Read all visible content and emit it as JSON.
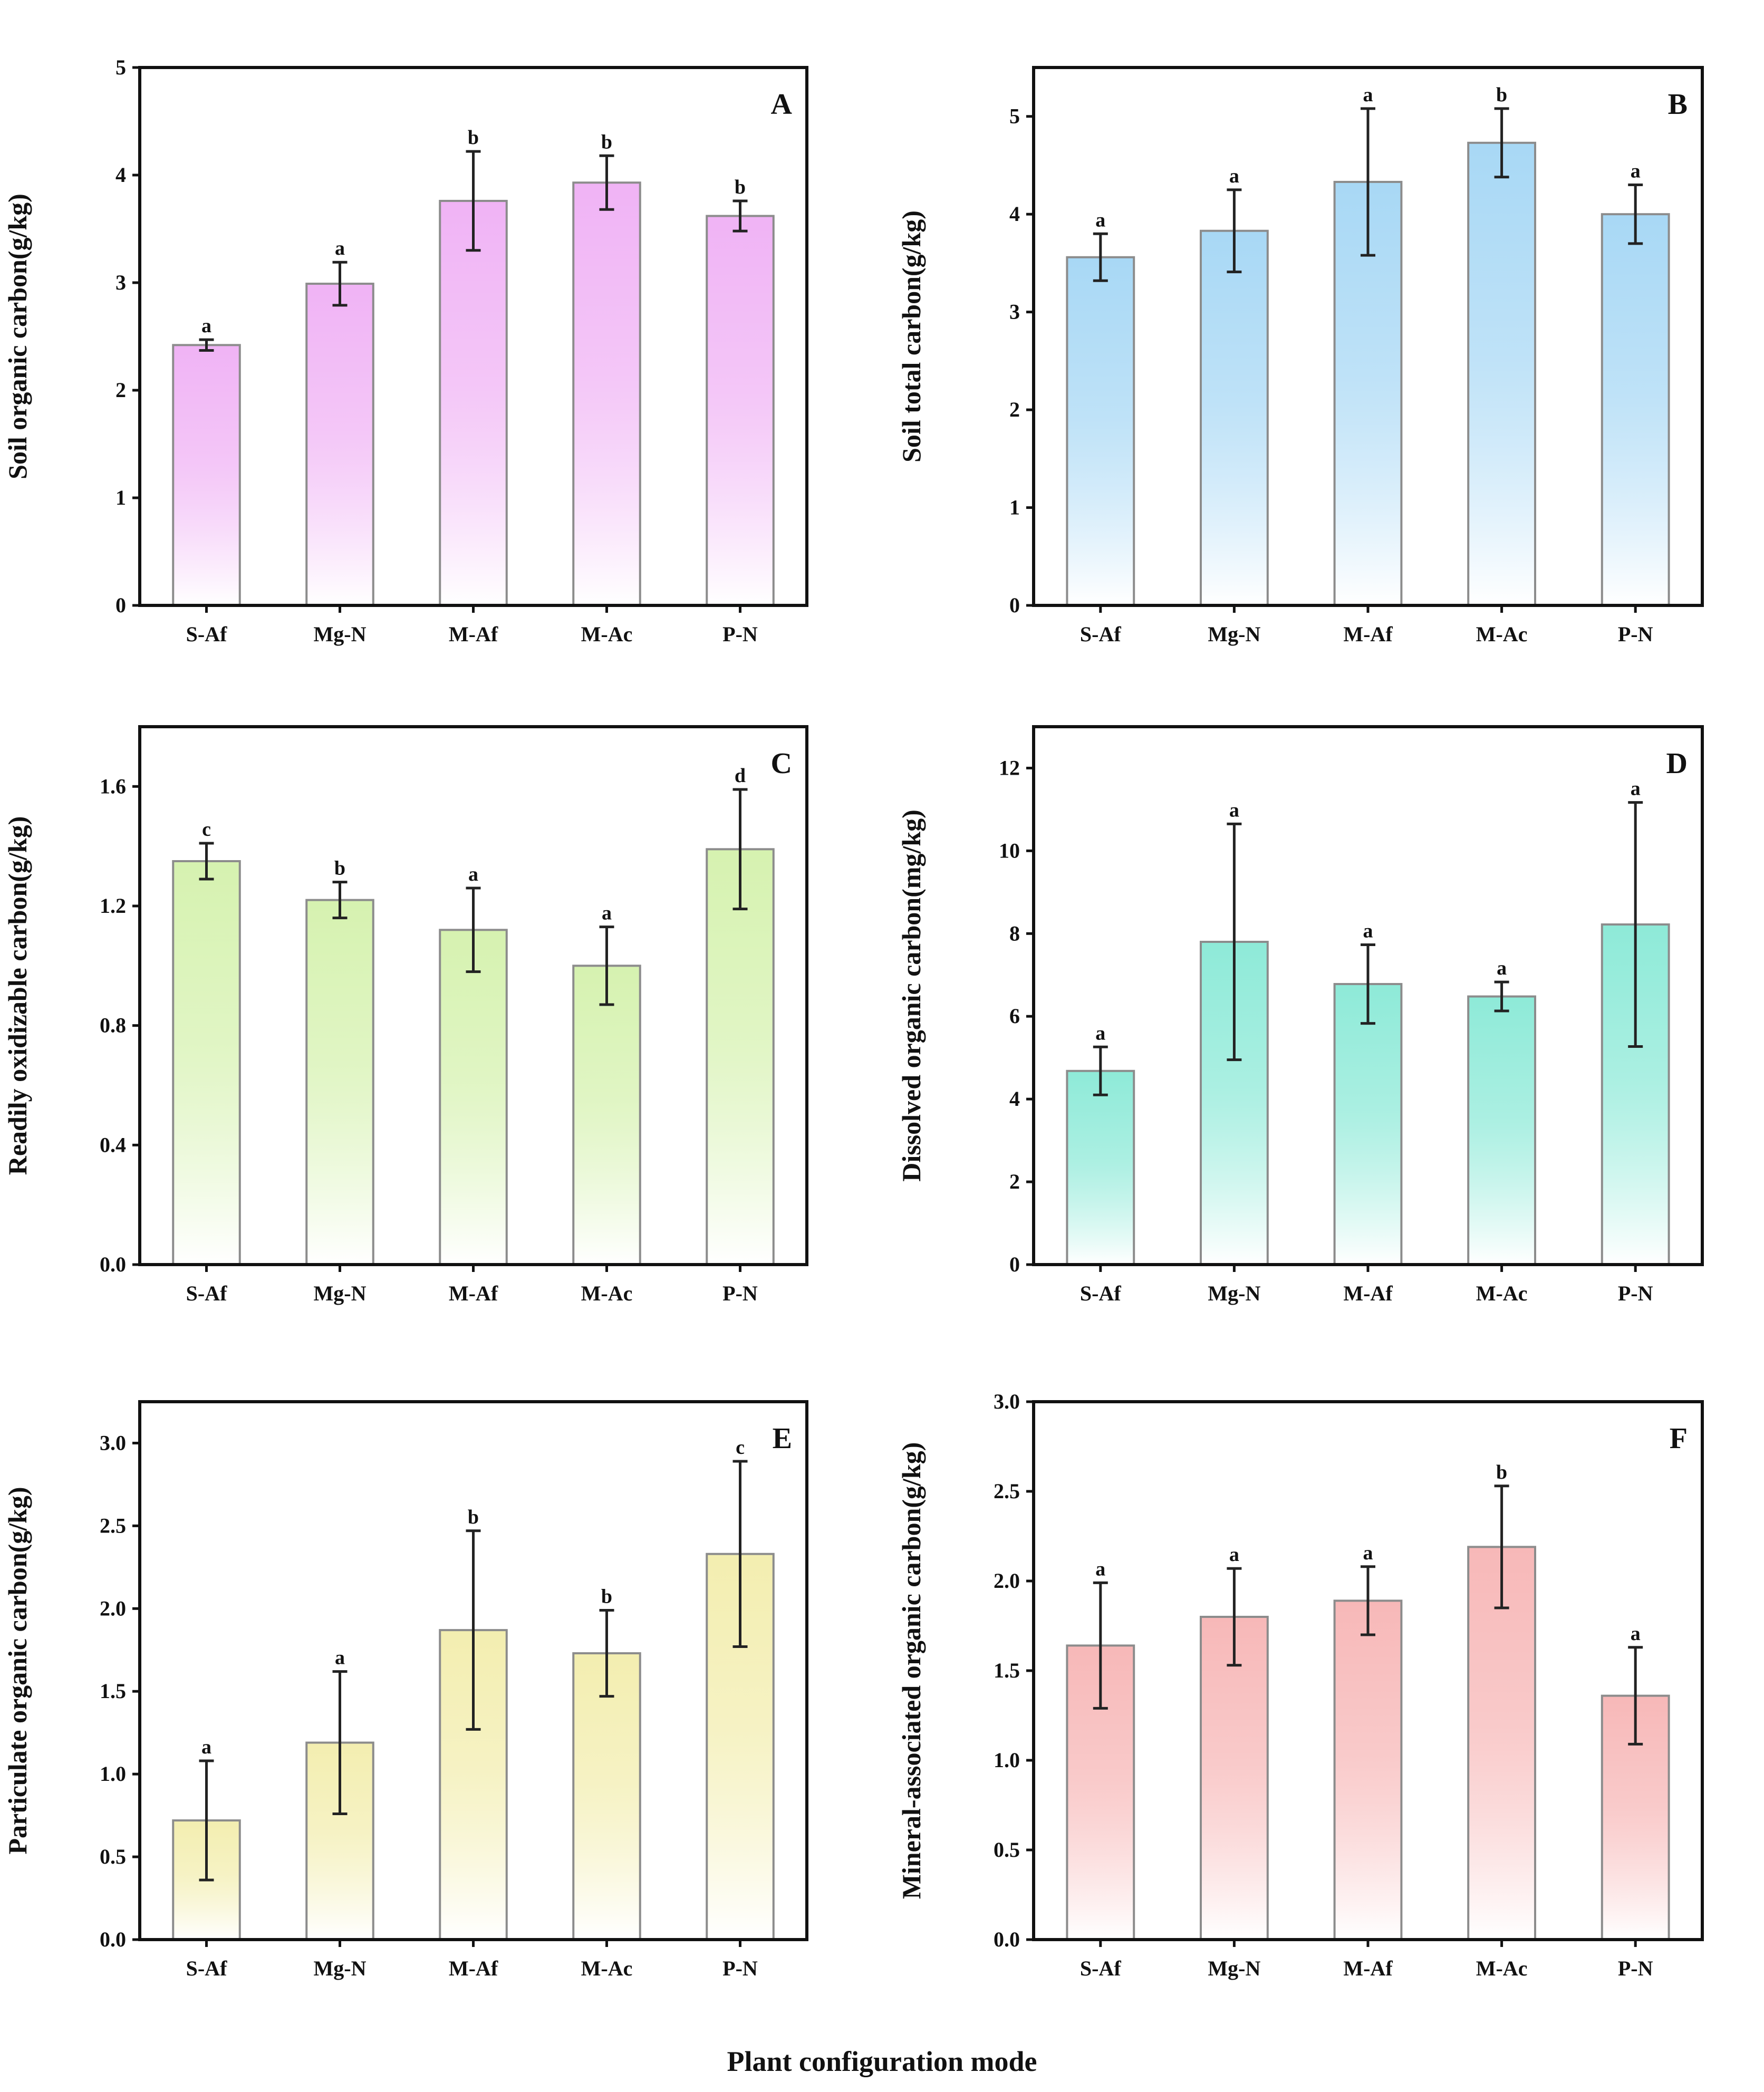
{
  "figure": {
    "common_xlabel": "Plant configuration mode"
  },
  "chart_data": [
    {
      "panel": "A",
      "type": "bar",
      "ylabel": "Soil organic carbon(g/kg)",
      "categories": [
        "S-Af",
        "Mg-N",
        "M-Af",
        "M-Ac",
        "P-N"
      ],
      "values": [
        2.42,
        2.99,
        3.76,
        3.93,
        3.62
      ],
      "errors": [
        0.05,
        0.2,
        0.46,
        0.25,
        0.14
      ],
      "letters": [
        "a",
        "a",
        "b",
        "b",
        "b"
      ],
      "ylim": [
        0,
        5
      ],
      "yticks": [
        "0",
        "1",
        "2",
        "3",
        "4",
        "5"
      ],
      "ytick_values": [
        0,
        1,
        2,
        3,
        4,
        5
      ],
      "color": "#f0b3f5"
    },
    {
      "panel": "B",
      "type": "bar",
      "ylabel": "Soil total carbon(g/kg)",
      "categories": [
        "S-Af",
        "Mg-N",
        "M-Af",
        "M-Ac",
        "P-N"
      ],
      "values": [
        3.56,
        3.83,
        4.33,
        4.73,
        4.0
      ],
      "errors": [
        0.24,
        0.42,
        0.75,
        0.35,
        0.3
      ],
      "letters": [
        "a",
        "a",
        "a",
        "b",
        "a"
      ],
      "ylim": [
        0,
        5.5
      ],
      "yticks": [
        "0",
        "1",
        "2",
        "3",
        "4",
        "5"
      ],
      "ytick_values": [
        0,
        1,
        2,
        3,
        4,
        5
      ],
      "color": "#a8d8f5"
    },
    {
      "panel": "C",
      "type": "bar",
      "ylabel": "Readily oxidizable carbon(g/kg)",
      "categories": [
        "S-Af",
        "Mg-N",
        "M-Af",
        "M-Ac",
        "P-N"
      ],
      "values": [
        1.35,
        1.22,
        1.12,
        1.0,
        1.39
      ],
      "errors": [
        0.06,
        0.06,
        0.14,
        0.13,
        0.2
      ],
      "letters": [
        "c",
        "b",
        "a",
        "a",
        "d"
      ],
      "ylim": [
        0,
        1.8
      ],
      "yticks": [
        "0.0",
        "0.4",
        "0.8",
        "1.2",
        "1.6"
      ],
      "ytick_values": [
        0,
        0.4,
        0.8,
        1.2,
        1.6
      ],
      "color": "#d6f2b0"
    },
    {
      "panel": "D",
      "type": "bar",
      "ylabel": "Dissolved organic carbon(mg/kg)",
      "categories": [
        "S-Af",
        "Mg-N",
        "M-Af",
        "M-Ac",
        "P-N"
      ],
      "values": [
        4.68,
        7.8,
        6.78,
        6.48,
        8.22
      ],
      "errors": [
        0.58,
        2.85,
        0.95,
        0.35,
        2.95
      ],
      "letters": [
        "a",
        "a",
        "a",
        "a",
        "a"
      ],
      "ylim": [
        0,
        13
      ],
      "yticks": [
        "0",
        "2",
        "4",
        "6",
        "8",
        "10",
        "12"
      ],
      "ytick_values": [
        0,
        2,
        4,
        6,
        8,
        10,
        12
      ],
      "color": "#8eead8"
    },
    {
      "panel": "E",
      "type": "bar",
      "ylabel": "Particulate organic carbon(g/kg)",
      "categories": [
        "S-Af",
        "Mg-N",
        "M-Af",
        "M-Ac",
        "P-N"
      ],
      "values": [
        0.72,
        1.19,
        1.87,
        1.73,
        2.33
      ],
      "errors": [
        0.36,
        0.43,
        0.6,
        0.26,
        0.56
      ],
      "letters": [
        "a",
        "a",
        "b",
        "b",
        "c"
      ],
      "ylim": [
        0,
        3.25
      ],
      "yticks": [
        "0.0",
        "0.5",
        "1.0",
        "1.5",
        "2.0",
        "2.5",
        "3.0"
      ],
      "ytick_values": [
        0,
        0.5,
        1.0,
        1.5,
        2.0,
        2.5,
        3.0
      ],
      "color": "#f3eeb0"
    },
    {
      "panel": "F",
      "type": "bar",
      "ylabel": "Mineral-associated organic carbon(g/kg)",
      "categories": [
        "S-Af",
        "Mg-N",
        "M-Af",
        "M-Ac",
        "P-N"
      ],
      "values": [
        1.64,
        1.8,
        1.89,
        2.19,
        1.36
      ],
      "errors": [
        0.35,
        0.27,
        0.19,
        0.34,
        0.27
      ],
      "letters": [
        "a",
        "a",
        "a",
        "b",
        "a"
      ],
      "ylim": [
        0,
        3.0
      ],
      "yticks": [
        "0.0",
        "0.5",
        "1.0",
        "1.5",
        "2.0",
        "2.5",
        "3.0"
      ],
      "ytick_values": [
        0,
        0.5,
        1.0,
        1.5,
        2.0,
        2.5,
        3.0
      ],
      "color": "#f7b8b8"
    }
  ]
}
